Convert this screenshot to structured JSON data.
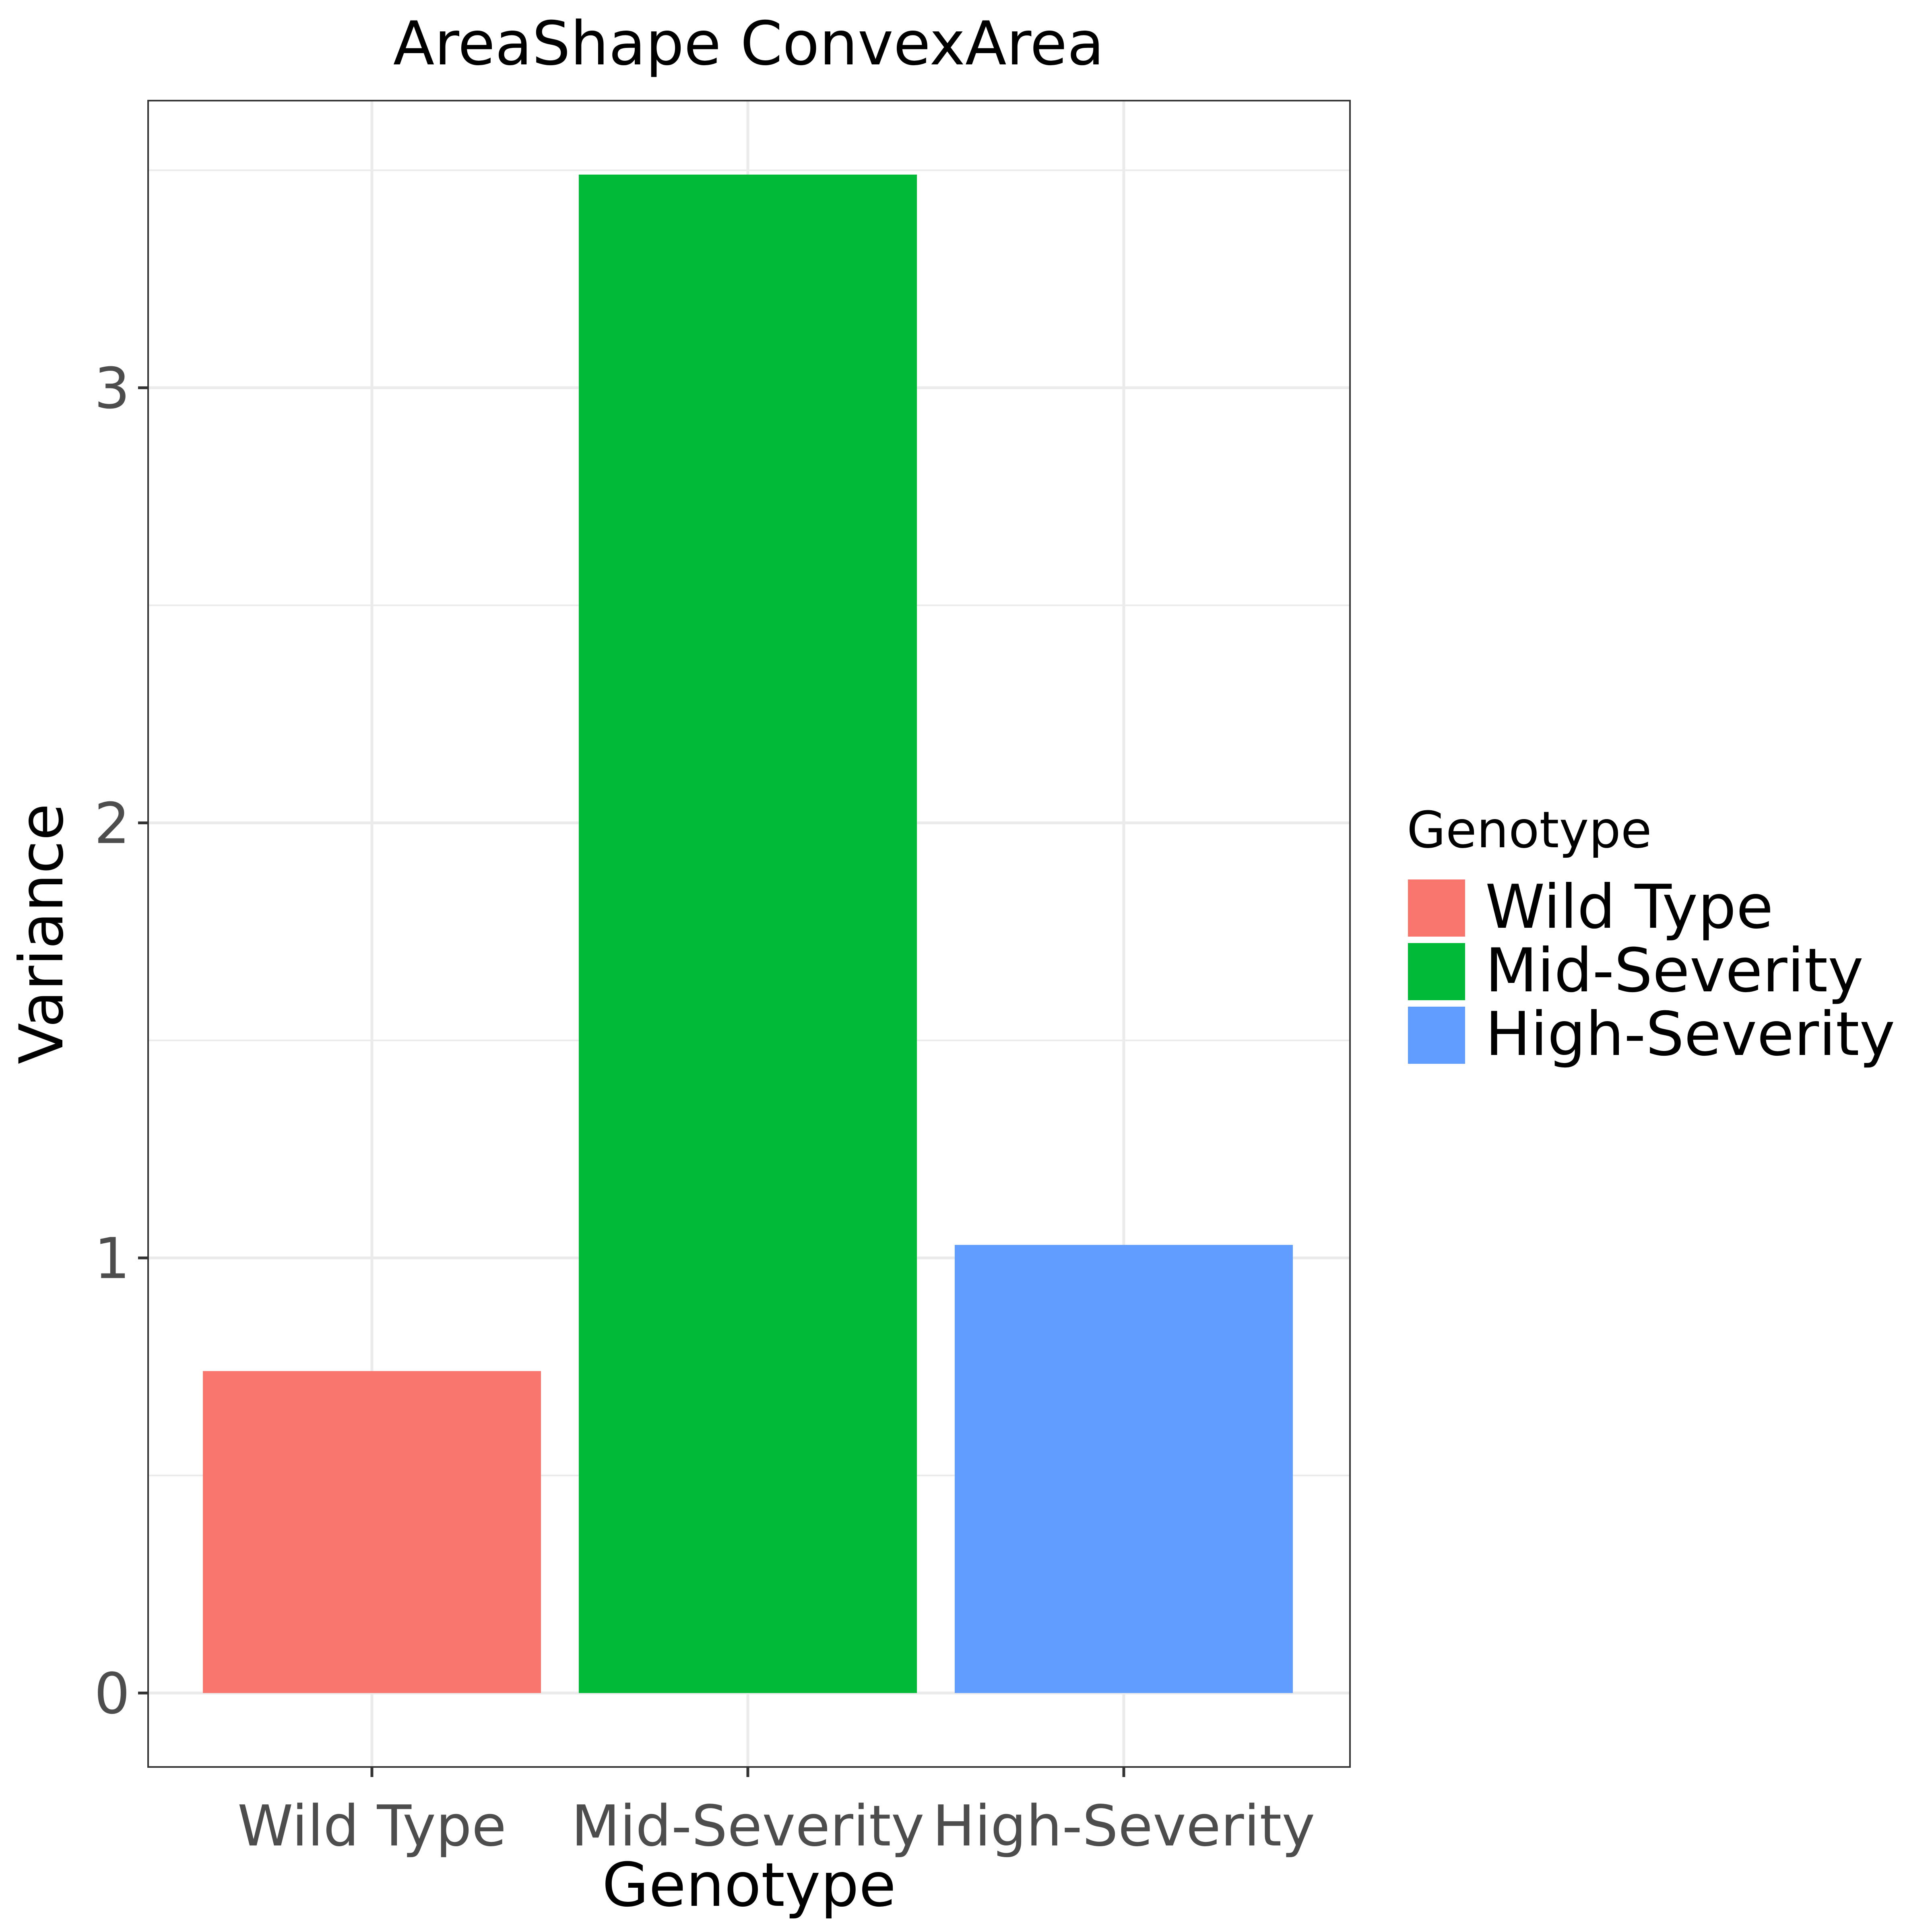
{
  "chart_data": {
    "type": "bar",
    "title": "AreaShape ConvexArea",
    "xlabel": "Genotype",
    "ylabel": "Variance",
    "categories": [
      "Wild Type",
      "Mid-Severity",
      "High-Severity"
    ],
    "values": [
      0.74,
      3.49,
      1.03
    ],
    "colors": [
      "#F8766D",
      "#00BA38",
      "#619CFF"
    ],
    "ylim": [
      -0.17,
      3.66
    ],
    "yticks": [
      0,
      1,
      2,
      3
    ],
    "yticks_labels": [
      "0",
      "1",
      "2",
      "3"
    ],
    "grid": true,
    "legend": {
      "title": "Genotype",
      "placement": "right",
      "entries": [
        "Wild Type",
        "Mid-Severity",
        "High-Severity"
      ]
    }
  }
}
